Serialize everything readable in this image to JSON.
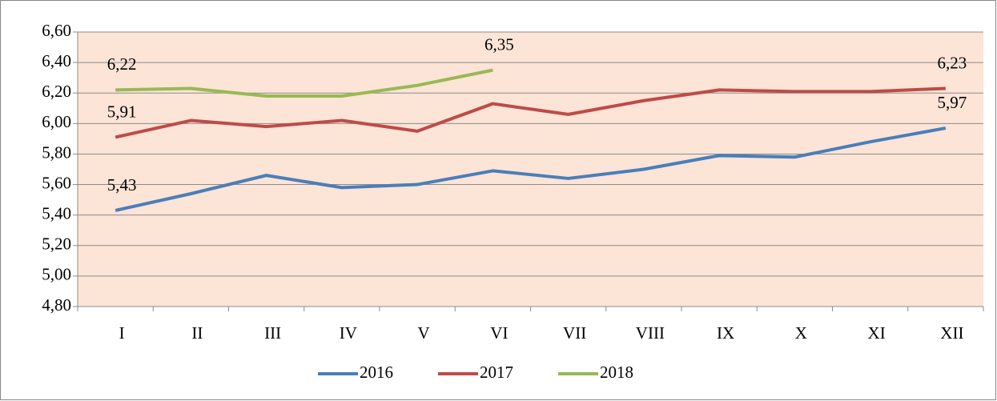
{
  "chart_data": {
    "type": "line",
    "categories": [
      "I",
      "II",
      "III",
      "IV",
      "V",
      "VI",
      "VII",
      "VIII",
      "IX",
      "X",
      "XI",
      "XII"
    ],
    "series": [
      {
        "name": "2016",
        "color": "#4a7ebb",
        "values": [
          5.43,
          5.54,
          5.66,
          5.58,
          5.6,
          5.69,
          5.64,
          5.7,
          5.79,
          5.78,
          5.88,
          5.97
        ],
        "value_labels": [
          "5,43",
          null,
          null,
          null,
          null,
          null,
          null,
          null,
          null,
          null,
          null,
          "5,97"
        ]
      },
      {
        "name": "2017",
        "color": "#be4b48",
        "values": [
          5.91,
          6.02,
          5.98,
          6.02,
          5.95,
          6.13,
          6.06,
          6.15,
          6.22,
          6.21,
          6.21,
          6.23
        ],
        "value_labels": [
          "5,91",
          null,
          null,
          null,
          null,
          null,
          null,
          null,
          null,
          null,
          null,
          "6,23"
        ]
      },
      {
        "name": "2018",
        "color": "#98b954",
        "values": [
          6.22,
          6.23,
          6.18,
          6.18,
          6.25,
          6.35,
          null,
          null,
          null,
          null,
          null,
          null
        ],
        "value_labels": [
          "6,22",
          null,
          null,
          null,
          null,
          "6,35",
          null,
          null,
          null,
          null,
          null,
          null
        ]
      }
    ],
    "ylim": [
      4.8,
      6.6
    ],
    "yticks": [
      {
        "value": 4.8,
        "label": "4,80"
      },
      {
        "value": 5.0,
        "label": "5,00"
      },
      {
        "value": 5.2,
        "label": "5,20"
      },
      {
        "value": 5.4,
        "label": "5,40"
      },
      {
        "value": 5.6,
        "label": "5,60"
      },
      {
        "value": 5.8,
        "label": "5,80"
      },
      {
        "value": 6.0,
        "label": "6,00"
      },
      {
        "value": 6.2,
        "label": "6,20"
      },
      {
        "value": 6.4,
        "label": "6,40"
      },
      {
        "value": 6.6,
        "label": "6,60"
      }
    ],
    "grid": true,
    "legend": "bottom",
    "background": "#fce4d6"
  }
}
